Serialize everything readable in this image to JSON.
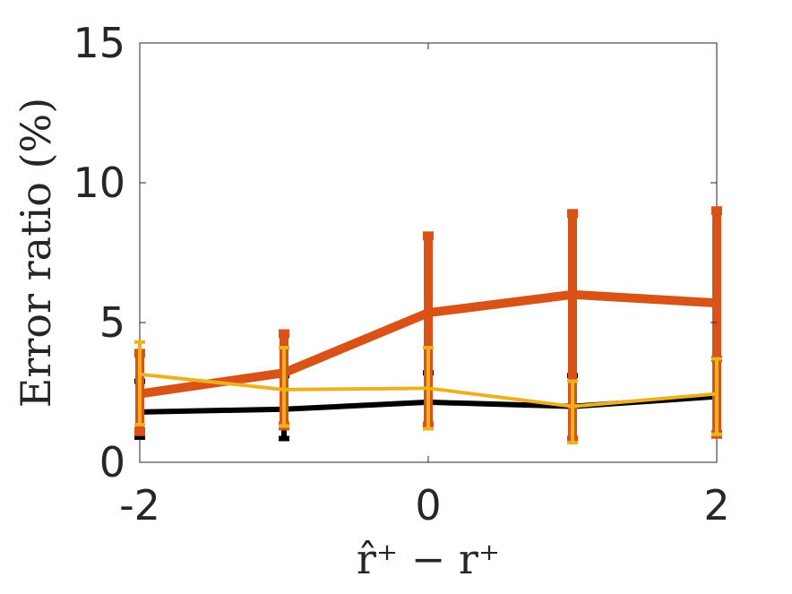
{
  "chart_data": {
    "type": "line",
    "title": "",
    "xlabel": "r̂⁺ − r⁺",
    "ylabel": "Error ratio (%)",
    "x": [
      -2,
      -1,
      0,
      1,
      2
    ],
    "xlim": [
      -2,
      2
    ],
    "ylim": [
      0,
      15
    ],
    "xticks": [
      "-2",
      "0",
      "2"
    ],
    "yticks": [
      "0",
      "5",
      "10",
      "15"
    ],
    "grid": false,
    "legend": "none",
    "series": [
      {
        "color": "#000000",
        "values": [
          1.8,
          1.9,
          2.15,
          2.0,
          2.35
        ],
        "err_low": [
          0.9,
          0.85,
          1.3,
          0.75,
          0.95
        ],
        "err_high": [
          2.9,
          3.1,
          3.2,
          3.1,
          3.7
        ]
      },
      {
        "color": "#D95319",
        "values": [
          2.45,
          3.2,
          5.35,
          6.0,
          5.7
        ],
        "err_low": [
          1.1,
          1.3,
          1.3,
          0.8,
          1.0
        ],
        "err_high": [
          3.9,
          4.6,
          8.1,
          8.9,
          9.0
        ]
      },
      {
        "color": "#EDB120",
        "values": [
          3.15,
          2.6,
          2.65,
          2.0,
          2.45
        ],
        "err_low": [
          1.35,
          1.3,
          1.2,
          0.7,
          1.0
        ],
        "err_high": [
          4.3,
          4.1,
          4.1,
          2.9,
          3.7
        ]
      }
    ]
  }
}
